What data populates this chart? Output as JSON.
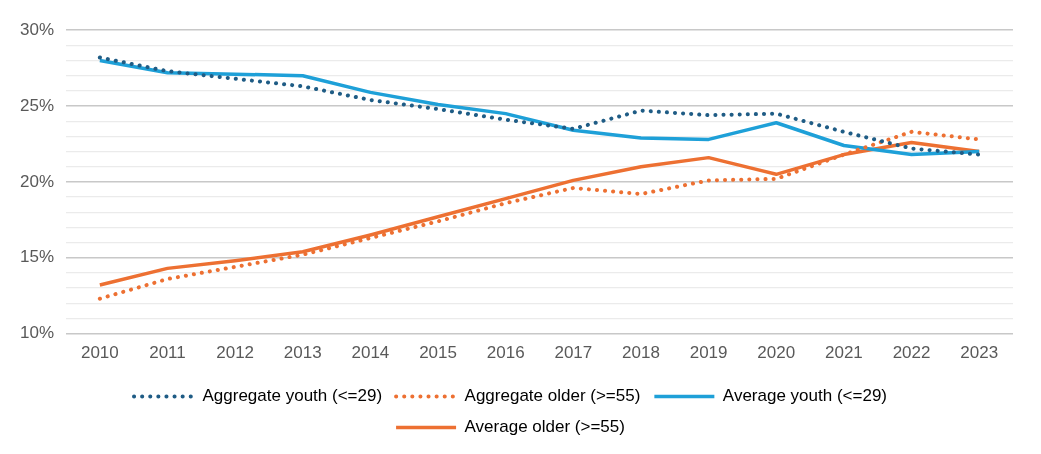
{
  "chart_data": {
    "type": "line",
    "categories": [
      "2010",
      "2011",
      "2012",
      "2013",
      "2014",
      "2015",
      "2016",
      "2017",
      "2018",
      "2019",
      "2020",
      "2021",
      "2022",
      "2023"
    ],
    "series": [
      {
        "name": "Aggregate youth (<=29)",
        "color": "#1f5c85",
        "line_style": "dotted",
        "values": [
          28.2,
          27.3,
          26.8,
          26.3,
          25.4,
          24.8,
          24.1,
          23.5,
          24.7,
          24.4,
          24.5,
          23.3,
          22.2,
          21.8
        ]
      },
      {
        "name": "Aggregate older (>=55)",
        "color": "#ed7032",
        "line_style": "dotted",
        "values": [
          12.3,
          13.6,
          14.4,
          15.2,
          16.3,
          17.4,
          18.6,
          19.6,
          19.2,
          20.1,
          20.2,
          21.8,
          23.3,
          22.8
        ]
      },
      {
        "name": "Average youth (<=29)",
        "color": "#1ea0d8",
        "line_style": "solid",
        "values": [
          28.0,
          27.2,
          27.1,
          27.0,
          25.9,
          25.1,
          24.5,
          23.4,
          22.9,
          22.8,
          23.9,
          22.4,
          21.8,
          22.0
        ]
      },
      {
        "name": "Average older (>=55)",
        "color": "#ed7032",
        "line_style": "solid",
        "values": [
          13.2,
          14.3,
          14.8,
          15.4,
          16.5,
          17.7,
          18.9,
          20.1,
          21.0,
          21.6,
          20.5,
          21.8,
          22.6,
          22.0
        ]
      }
    ],
    "ylim": [
      10,
      30
    ],
    "yticks": [
      {
        "value": 10,
        "label": "10%"
      },
      {
        "value": 11,
        "label": null
      },
      {
        "value": 12,
        "label": null
      },
      {
        "value": 13,
        "label": null
      },
      {
        "value": 14,
        "label": null
      },
      {
        "value": 15,
        "label": "15%"
      },
      {
        "value": 16,
        "label": null
      },
      {
        "value": 17,
        "label": null
      },
      {
        "value": 18,
        "label": null
      },
      {
        "value": 19,
        "label": null
      },
      {
        "value": 20,
        "label": "20%"
      },
      {
        "value": 21,
        "label": null
      },
      {
        "value": 22,
        "label": null
      },
      {
        "value": 23,
        "label": null
      },
      {
        "value": 24,
        "label": null
      },
      {
        "value": 25,
        "label": "25%"
      },
      {
        "value": 26,
        "label": null
      },
      {
        "value": 27,
        "label": null
      },
      {
        "value": 28,
        "label": null
      },
      {
        "value": 29,
        "label": null
      },
      {
        "value": 30,
        "label": "30%"
      }
    ],
    "grid": "y",
    "legend": "bottom",
    "marker": "none"
  }
}
